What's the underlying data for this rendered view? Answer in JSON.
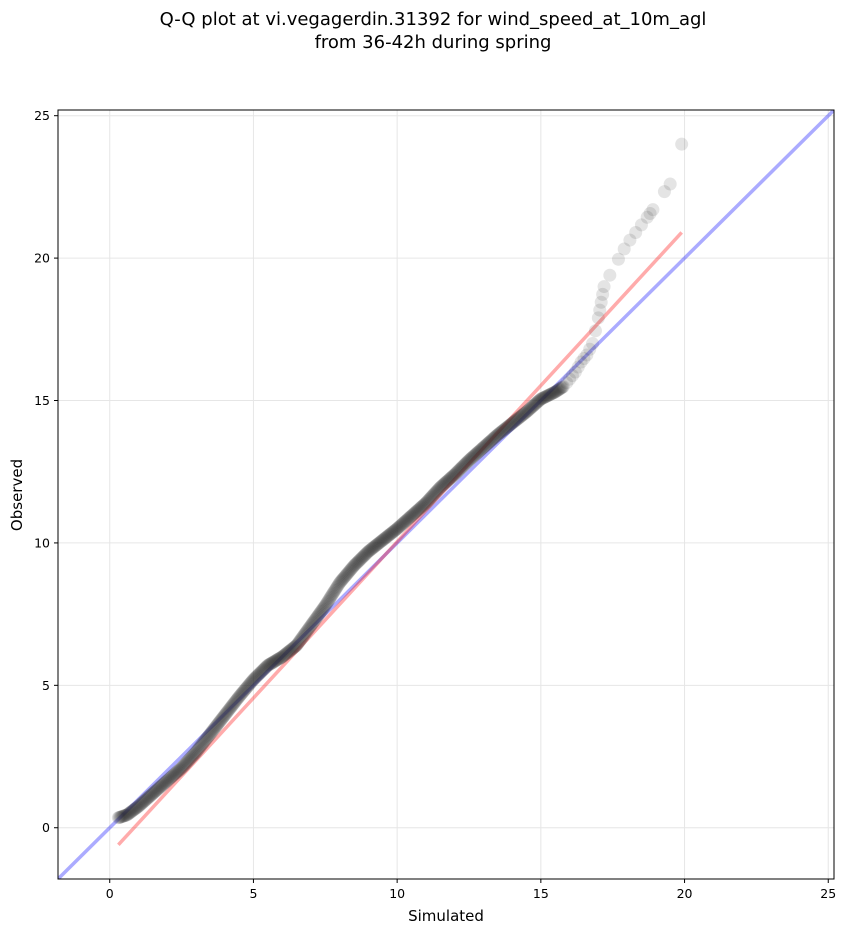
{
  "chart_data": {
    "type": "scatter",
    "title_lines": [
      "Q-Q plot at vi.vegagerdin.31392 for wind_speed_at_10m_agl",
      "from 36-42h during spring"
    ],
    "xlabel": "Simulated",
    "ylabel": "Observed",
    "xlim": [
      -1.8,
      25.2
    ],
    "ylim": [
      -1.8,
      25.2
    ],
    "xticks": [
      0,
      5,
      10,
      15,
      20,
      25
    ],
    "yticks": [
      0,
      5,
      10,
      15,
      20,
      25
    ],
    "grid": true,
    "quantile_curve": {
      "x": [
        0.3,
        0.6,
        1.0,
        1.5,
        2.0,
        2.5,
        3.0,
        3.5,
        4.0,
        4.5,
        5.0,
        5.5,
        6.0,
        6.5,
        7.0,
        7.5,
        8.0,
        8.5,
        9.0,
        9.5,
        10.0,
        10.5,
        11.0,
        11.5,
        12.0,
        12.5,
        13.0,
        13.5,
        14.0,
        14.5,
        15.0,
        15.5,
        15.8,
        16.2,
        16.4,
        16.6,
        16.8,
        17.0,
        17.2,
        17.5,
        18.0,
        18.3,
        18.6,
        18.9,
        19.2,
        19.5,
        19.7,
        19.9
      ],
      "y": [
        0.35,
        0.45,
        0.75,
        1.2,
        1.65,
        2.1,
        2.65,
        3.3,
        3.95,
        4.6,
        5.2,
        5.7,
        6.0,
        6.4,
        7.1,
        7.8,
        8.6,
        9.2,
        9.7,
        10.1,
        10.5,
        10.95,
        11.4,
        11.95,
        12.4,
        12.9,
        13.35,
        13.8,
        14.2,
        14.6,
        15.05,
        15.3,
        15.5,
        16.0,
        16.35,
        16.6,
        17.0,
        17.9,
        19.0,
        19.6,
        20.5,
        20.9,
        21.3,
        21.7,
        22.2,
        22.6,
        23.2,
        24.0
      ]
    },
    "series": [
      {
        "type": "line",
        "color": "#0000ff",
        "slope": 1,
        "intercept": 0
      },
      {
        "type": "line",
        "color": "#ff0000",
        "x": [
          0.3,
          19.9
        ],
        "y": [
          -0.6,
          20.9
        ]
      }
    ],
    "colors": {
      "points": "#222222",
      "blue_line": "#0000ff",
      "red_line": "#ff0000",
      "grid": "#e6e6e6"
    }
  }
}
